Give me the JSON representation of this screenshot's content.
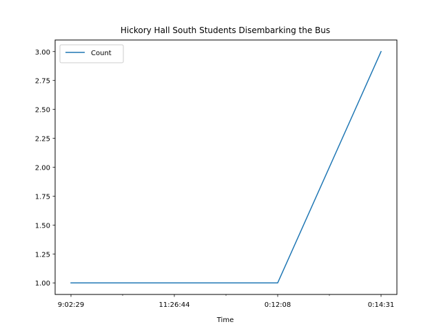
{
  "chart_data": {
    "type": "line",
    "title": "Hickory Hall South Students Disembarking the Bus",
    "xlabel": "Time",
    "ylabel": "",
    "x_tick_labels": [
      "9:02:29",
      "11:26:44",
      "0:12:08",
      "0:14:31"
    ],
    "ylim": [
      0.9,
      3.1
    ],
    "y_ticks": [
      1.0,
      1.25,
      1.5,
      1.75,
      2.0,
      2.25,
      2.5,
      2.75,
      3.0
    ],
    "y_tick_labels": [
      "1.00",
      "1.25",
      "1.50",
      "1.75",
      "2.00",
      "2.25",
      "2.50",
      "2.75",
      "3.00"
    ],
    "legend_position": "top-left",
    "grid": false,
    "series": [
      {
        "name": "Count",
        "color": "#1f77b4",
        "x": [
          0,
          1,
          2,
          3
        ],
        "values": [
          1,
          1,
          1,
          3
        ]
      }
    ]
  }
}
